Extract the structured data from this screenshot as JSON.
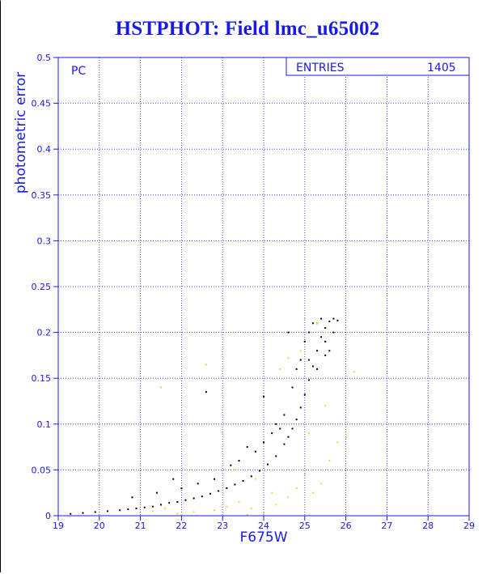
{
  "chart_data": {
    "type": "scatter",
    "title": "HSTPHOT: Field lmc_u65002",
    "xlabel": "F675W",
    "ylabel": "photometric error",
    "xlim": [
      19,
      29
    ],
    "ylim": [
      0,
      0.5
    ],
    "xticks": [
      "19",
      "20",
      "21",
      "22",
      "23",
      "24",
      "25",
      "26",
      "27",
      "28",
      "29"
    ],
    "yticks": [
      "0",
      "0.05",
      "0.1",
      "0.15",
      "0.2",
      "0.25",
      "0.3",
      "0.35",
      "0.4",
      "0.45",
      "0.5"
    ],
    "grid": true,
    "panel_label": "PC",
    "stats_label": "ENTRIES",
    "stats_value": "1405",
    "colors": {
      "text": "#1a1ae6",
      "primary_points": "#000000",
      "secondary_points": "#e6d84a"
    },
    "series": [
      {
        "color": "primary_points",
        "points": [
          [
            19.3,
            0.002
          ],
          [
            19.6,
            0.003
          ],
          [
            19.9,
            0.004
          ],
          [
            20.2,
            0.005
          ],
          [
            20.5,
            0.006
          ],
          [
            20.7,
            0.007
          ],
          [
            20.9,
            0.008
          ],
          [
            21.1,
            0.009
          ],
          [
            21.3,
            0.01
          ],
          [
            21.5,
            0.012
          ],
          [
            21.7,
            0.014
          ],
          [
            21.9,
            0.015
          ],
          [
            22.1,
            0.017
          ],
          [
            22.3,
            0.019
          ],
          [
            22.5,
            0.021
          ],
          [
            22.7,
            0.024
          ],
          [
            22.9,
            0.027
          ],
          [
            23.1,
            0.03
          ],
          [
            23.3,
            0.034
          ],
          [
            23.5,
            0.038
          ],
          [
            23.7,
            0.043
          ],
          [
            23.9,
            0.049
          ],
          [
            24.1,
            0.056
          ],
          [
            24.3,
            0.065
          ],
          [
            24.5,
            0.078
          ],
          [
            24.6,
            0.086
          ],
          [
            24.7,
            0.095
          ],
          [
            24.8,
            0.105
          ],
          [
            24.9,
            0.118
          ],
          [
            25.0,
            0.132
          ],
          [
            25.1,
            0.148
          ],
          [
            25.2,
            0.163
          ],
          [
            25.3,
            0.18
          ],
          [
            25.4,
            0.195
          ],
          [
            25.5,
            0.205
          ],
          [
            25.6,
            0.212
          ],
          [
            25.7,
            0.215
          ],
          [
            25.8,
            0.213
          ],
          [
            25.3,
            0.21
          ],
          [
            25.1,
            0.2
          ],
          [
            25.5,
            0.19
          ],
          [
            25.6,
            0.18
          ],
          [
            24.2,
            0.09
          ],
          [
            23.8,
            0.07
          ],
          [
            23.4,
            0.06
          ],
          [
            22.8,
            0.04
          ],
          [
            22.0,
            0.03
          ],
          [
            21.4,
            0.025
          ],
          [
            20.8,
            0.02
          ],
          [
            21.8,
            0.04
          ],
          [
            22.6,
            0.135
          ],
          [
            24.0,
            0.13
          ],
          [
            24.6,
            0.2
          ],
          [
            25.0,
            0.19
          ],
          [
            25.2,
            0.21
          ],
          [
            25.4,
            0.215
          ],
          [
            24.9,
            0.17
          ],
          [
            24.8,
            0.16
          ],
          [
            24.5,
            0.11
          ],
          [
            24.3,
            0.1
          ],
          [
            23.6,
            0.075
          ],
          [
            23.2,
            0.055
          ],
          [
            22.4,
            0.035
          ],
          [
            25.7,
            0.2
          ],
          [
            25.5,
            0.175
          ],
          [
            25.3,
            0.16
          ],
          [
            25.1,
            0.17
          ],
          [
            24.7,
            0.14
          ],
          [
            24.4,
            0.095
          ],
          [
            24.0,
            0.08
          ]
        ]
      },
      {
        "color": "secondary_points",
        "points": [
          [
            21.3,
            0.005
          ],
          [
            21.6,
            0.008
          ],
          [
            21.9,
            0.002
          ],
          [
            22.3,
            0.004
          ],
          [
            22.8,
            0.006
          ],
          [
            23.1,
            0.01
          ],
          [
            23.4,
            0.015
          ],
          [
            23.7,
            0.008
          ],
          [
            24.0,
            0.003
          ],
          [
            24.3,
            0.012
          ],
          [
            24.6,
            0.02
          ],
          [
            24.8,
            0.03
          ],
          [
            25.0,
            0.045
          ],
          [
            25.2,
            0.025
          ],
          [
            25.4,
            0.035
          ],
          [
            25.6,
            0.06
          ],
          [
            25.8,
            0.08
          ],
          [
            26.0,
            0.085
          ],
          [
            26.2,
            0.157
          ],
          [
            23.0,
            0.09
          ],
          [
            22.6,
            0.165
          ],
          [
            24.4,
            0.16
          ],
          [
            24.6,
            0.172
          ],
          [
            24.9,
            0.18
          ],
          [
            25.0,
            0.215
          ],
          [
            25.3,
            0.21
          ],
          [
            25.5,
            0.2
          ],
          [
            21.5,
            0.14
          ],
          [
            23.3,
            0.05
          ],
          [
            23.8,
            0.04
          ],
          [
            24.2,
            0.025
          ],
          [
            25.1,
            0.09
          ],
          [
            25.5,
            0.12
          ],
          [
            22.0,
            0.001
          ],
          [
            23.6,
            0.001
          ]
        ]
      }
    ]
  }
}
